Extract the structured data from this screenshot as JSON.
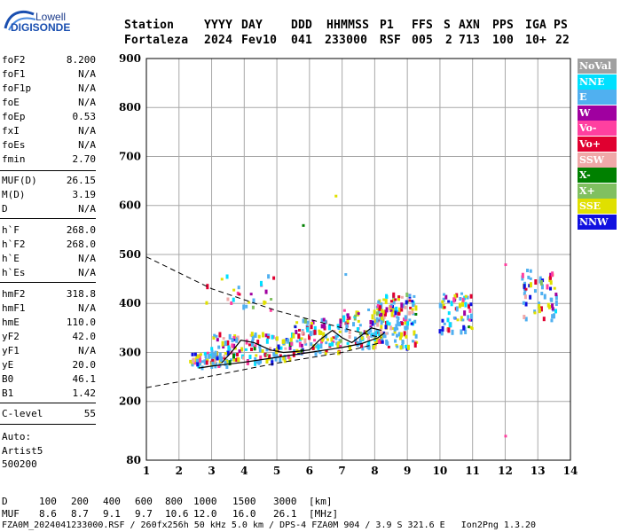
{
  "logo": {
    "top": "Lowell",
    "main": "DIGISONDE"
  },
  "header": {
    "labels": [
      "Station",
      "YYYY",
      "DAY",
      "DDD",
      "HHMMSS",
      "P1",
      "FFS",
      "S",
      "AXN",
      "PPS",
      "IGA",
      "PS"
    ],
    "values": [
      "Fortaleza",
      "2024",
      "Fev10",
      "041",
      "233000",
      "RSF",
      "005",
      "2",
      "713",
      "100",
      "10+",
      "22"
    ]
  },
  "parameters": [
    {
      "name": "foF2",
      "value": "8.200"
    },
    {
      "name": "foF1",
      "value": "N/A"
    },
    {
      "name": "foF1p",
      "value": "N/A"
    },
    {
      "name": "foE",
      "value": "N/A"
    },
    {
      "name": "foEp",
      "value": "0.53"
    },
    {
      "name": "fxI",
      "value": "N/A"
    },
    {
      "name": "foEs",
      "value": "N/A"
    },
    {
      "name": "fmin",
      "value": "2.70"
    },
    {
      "name": "MUF(D)",
      "value": "26.15"
    },
    {
      "name": "M(D)",
      "value": "3.19"
    },
    {
      "name": "D",
      "value": "N/A"
    },
    {
      "name": "h`F",
      "value": "268.0"
    },
    {
      "name": "h`F2",
      "value": "268.0"
    },
    {
      "name": "h`E",
      "value": "N/A"
    },
    {
      "name": "h`Es",
      "value": "N/A"
    },
    {
      "name": "hmF2",
      "value": "318.8"
    },
    {
      "name": "hmF1",
      "value": "N/A"
    },
    {
      "name": "hmE",
      "value": "110.0"
    },
    {
      "name": "yF2",
      "value": "42.0"
    },
    {
      "name": "yF1",
      "value": "N/A"
    },
    {
      "name": "yE",
      "value": "20.0"
    },
    {
      "name": "B0",
      "value": "46.1"
    },
    {
      "name": "B1",
      "value": "1.42"
    },
    {
      "name": "C-level",
      "value": "55"
    }
  ],
  "auto": {
    "line1": "Auto:",
    "line2": "Artist5",
    "line3": "500200"
  },
  "legend": [
    {
      "label": "NoVal",
      "color": "#a0a0a0"
    },
    {
      "label": "NNE",
      "color": "#00e0ff"
    },
    {
      "label": "E",
      "color": "#50b0f0"
    },
    {
      "label": "W",
      "color": "#a000a0"
    },
    {
      "label": "Vo-",
      "color": "#ff40a0"
    },
    {
      "label": "Vo+",
      "color": "#e00030"
    },
    {
      "label": "SSW",
      "color": "#f0a8a8"
    },
    {
      "label": "X-",
      "color": "#008000"
    },
    {
      "label": "X+",
      "color": "#80c060"
    },
    {
      "label": "SSE",
      "color": "#e0e000"
    },
    {
      "label": "NNW",
      "color": "#1010e0"
    }
  ],
  "footer": {
    "d_label": "D",
    "d_values": [
      "100",
      "200",
      "400",
      "600",
      "800",
      "1000",
      "1500",
      "3000",
      "[km]"
    ],
    "muf_label": "MUF",
    "muf_values": [
      "8.6",
      "8.7",
      "9.1",
      "9.7",
      "10.6",
      "12.0",
      "16.0",
      "26.1",
      "[MHz]"
    ],
    "info": "FZA0M_2024041233000.RSF / 260fx256h 50 kHz 5.0 km / DPS-4 FZA0M 904 / 3.9 S 321.6 E   Ion2Png 1.3.20"
  },
  "chart_data": {
    "type": "scatter",
    "xlim": [
      1,
      14
    ],
    "ylim": [
      80,
      900
    ],
    "x_ticks": [
      1,
      2,
      3,
      4,
      5,
      6,
      7,
      8,
      9,
      10,
      11,
      12,
      13,
      14
    ],
    "y_ticks": [
      80,
      200,
      300,
      400,
      500,
      600,
      700,
      800,
      900
    ],
    "grid": true,
    "clusters": [
      {
        "x_range": [
          2.3,
          3.5
        ],
        "h_range": [
          270,
          300
        ],
        "count": 60
      },
      {
        "x_range": [
          3.0,
          5.5
        ],
        "h_range": [
          280,
          340
        ],
        "count": 140
      },
      {
        "x_range": [
          5.5,
          7.0
        ],
        "h_range": [
          295,
          370
        ],
        "count": 100
      },
      {
        "x_range": [
          7.0,
          8.3
        ],
        "h_range": [
          310,
          390
        ],
        "count": 90
      },
      {
        "x_range": [
          8.0,
          9.3
        ],
        "h_range": [
          310,
          420
        ],
        "count": 140
      },
      {
        "x_range": [
          10.0,
          11.0
        ],
        "h_range": [
          340,
          420
        ],
        "count": 60
      },
      {
        "x_range": [
          12.5,
          13.6
        ],
        "h_range": [
          360,
          470
        ],
        "count": 60
      },
      {
        "x_range": [
          2.8,
          5.0
        ],
        "h_range": [
          380,
          460
        ],
        "count": 25
      }
    ],
    "trace_low": [
      [
        2.6,
        268
      ],
      [
        3,
        272
      ],
      [
        4,
        280
      ],
      [
        5,
        290
      ],
      [
        6,
        300
      ],
      [
        7,
        310
      ],
      [
        7.6,
        318
      ],
      [
        8.1,
        330
      ],
      [
        8.3,
        340
      ]
    ],
    "trace_upper": [
      [
        3.3,
        278
      ],
      [
        3.6,
        300
      ],
      [
        3.9,
        325
      ],
      [
        4.3,
        320
      ],
      [
        4.8,
        305
      ],
      [
        5.2,
        300
      ],
      [
        5.6,
        302
      ],
      [
        6,
        305
      ],
      [
        6.3,
        325
      ],
      [
        6.7,
        345
      ],
      [
        7,
        330
      ],
      [
        7.3,
        320
      ],
      [
        7.6,
        335
      ],
      [
        7.9,
        350
      ],
      [
        8.2,
        345
      ]
    ],
    "dashed_high": [
      [
        1,
        495
      ],
      [
        3,
        430
      ],
      [
        5,
        385
      ],
      [
        7,
        350
      ],
      [
        8.2,
        330
      ]
    ],
    "dashed_low": [
      [
        1,
        228
      ],
      [
        3,
        252
      ],
      [
        5,
        278
      ],
      [
        7,
        300
      ],
      [
        8.2,
        320
      ]
    ]
  }
}
